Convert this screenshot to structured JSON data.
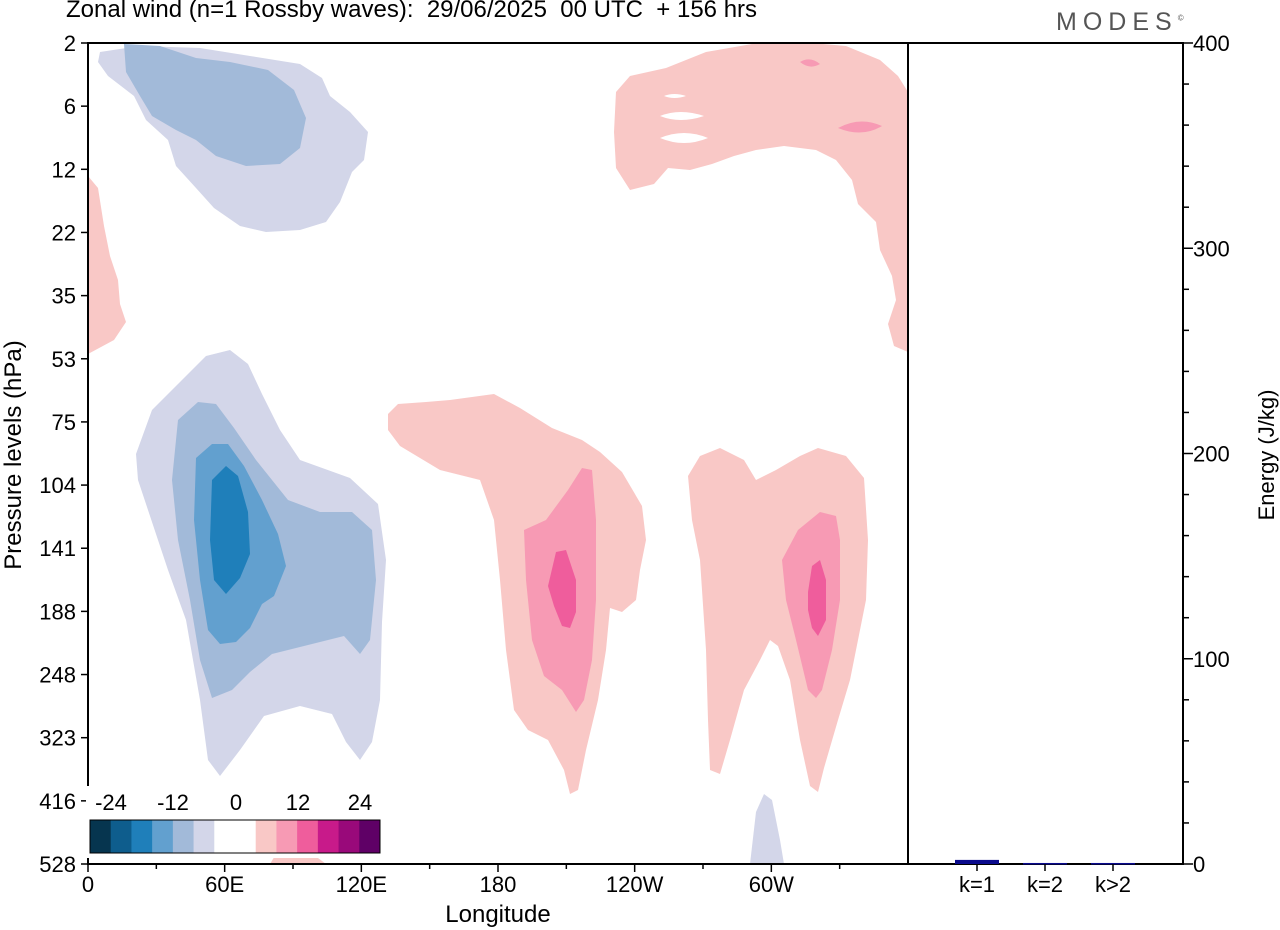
{
  "header": {
    "title": "Zonal wind (n=1 Rossby waves):  29/06/2025  00 UTC  + 156 hrs",
    "brand": "MODES",
    "brand_mark": "©"
  },
  "chart_data": [
    {
      "type": "contour",
      "xlabel": "Longitude",
      "ylabel": "Pressure levels (hPa)",
      "x_ticks": [
        "0",
        "60E",
        "120E",
        "180",
        "120W",
        "60W"
      ],
      "y_ticks": [
        "2",
        "6",
        "12",
        "22",
        "35",
        "53",
        "75",
        "104",
        "141",
        "188",
        "248",
        "323",
        "416",
        "528"
      ],
      "colorbar": {
        "labels": [
          "-24",
          "-12",
          "0",
          "12",
          "24"
        ],
        "colors": [
          "#06354f",
          "#0e5d8d",
          "#1f7fba",
          "#62a0cf",
          "#a2bad9",
          "#d3d6e9",
          "#ffffff",
          "#ffffff",
          "#f9c8c6",
          "#f79ab4",
          "#ef5d9c",
          "#c81a8a",
          "#99097a",
          "#5f0066"
        ]
      },
      "regions": [
        {
          "sign": "negative",
          "lon_center": "60E",
          "level_center": 141,
          "min_shown": -18
        },
        {
          "sign": "negative",
          "lon_center": "30E",
          "level_center": 6,
          "min_shown": -10
        },
        {
          "sign": "positive",
          "lon_center": "155W",
          "level_center": 141,
          "max_shown": 14
        },
        {
          "sign": "positive",
          "lon_center": "45W",
          "level_center": 141,
          "max_shown": 14
        },
        {
          "sign": "positive",
          "lon_center": "60W",
          "level_center": 6,
          "max_shown": 8
        }
      ]
    },
    {
      "type": "bar",
      "categories": [
        "k=1",
        "k=2",
        "k>2"
      ],
      "values": [
        2,
        0.5,
        0.5
      ],
      "ylabel": "Energy (J/kg)",
      "y_ticks": [
        "0",
        "100",
        "200",
        "300",
        "400"
      ],
      "ylim": [
        0,
        400
      ],
      "bar_color": "#0a0a8c"
    }
  ]
}
